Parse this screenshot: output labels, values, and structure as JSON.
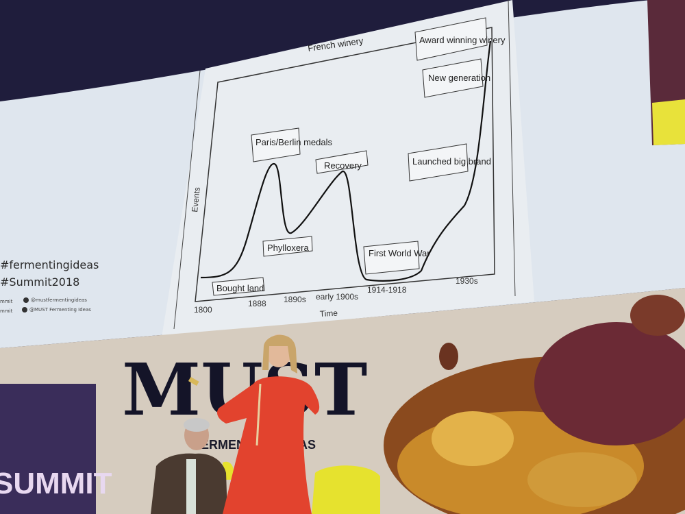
{
  "slide": {
    "title": "French winery",
    "y_axis_label": "Events",
    "x_axis_label": "Time",
    "x_ticks": [
      "1800",
      "1888",
      "1890s",
      "early 1900s",
      "1914-1918",
      "1930s"
    ],
    "annotations": [
      "Bought land",
      "Paris/Berlin medals",
      "Phylloxera",
      "Recovery",
      "First World War",
      "Launched big brand",
      "New generation",
      "Award winning winery"
    ],
    "hashtag_1": "#fermentingideas",
    "hashtag_2": "#Summit2018",
    "social_1": "@mustfermentingideas",
    "social_2": "@MUST Fermenting Ideas",
    "social_left_1": "mmit",
    "social_left_2": "mmit"
  },
  "stage": {
    "backdrop_logo": "MUST",
    "backdrop_subtitle": "FERMENTING IDEAS",
    "side_text": "SUMMIT"
  },
  "colors": {
    "screen": "#dde4ec",
    "dress": "#e2432e",
    "backdrop": "#d9cfc0",
    "chair": "#e8e030"
  }
}
